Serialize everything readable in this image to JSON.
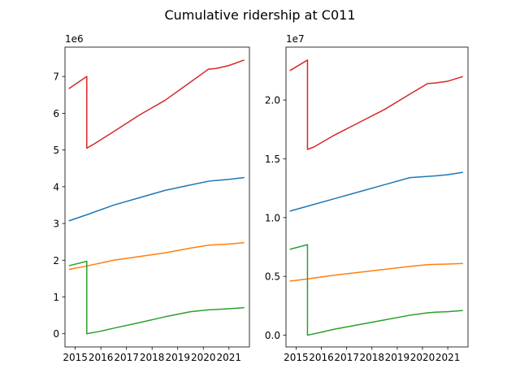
{
  "figure": {
    "title": "Cumulative ridership at C011"
  },
  "colors": {
    "blue": "#1f77b4",
    "orange": "#ff7f0e",
    "green": "#2ca02c",
    "red": "#d62728"
  },
  "chart_data": [
    {
      "type": "line",
      "title": "",
      "xlabel": "",
      "ylabel": "",
      "offset_text": "1e6",
      "xlim": [
        2014.6,
        2021.8
      ],
      "ylim": [
        -0.36,
        7.8
      ],
      "grid": false,
      "x_ticks": [
        {
          "v": 2015,
          "label": "2015"
        },
        {
          "v": 2016,
          "label": "2016"
        },
        {
          "v": 2017,
          "label": "2017"
        },
        {
          "v": 2018,
          "label": "2018"
        },
        {
          "v": 2019,
          "label": "2019"
        },
        {
          "v": 2020,
          "label": "2020"
        },
        {
          "v": 2021,
          "label": "2021"
        }
      ],
      "y_ticks": [
        {
          "v": 0,
          "label": "0"
        },
        {
          "v": 1,
          "label": "1"
        },
        {
          "v": 2,
          "label": "2"
        },
        {
          "v": 3,
          "label": "3"
        },
        {
          "v": 4,
          "label": "4"
        },
        {
          "v": 5,
          "label": "5"
        },
        {
          "v": 6,
          "label": "6"
        },
        {
          "v": 7,
          "label": "7"
        }
      ],
      "series": [
        {
          "color": "blue",
          "x": [
            2014.75,
            2015.5,
            2016.5,
            2017.5,
            2018.5,
            2019.5,
            2020.2,
            2020.5,
            2021.0,
            2021.6
          ],
          "y": [
            3.07,
            3.25,
            3.5,
            3.7,
            3.9,
            4.05,
            4.15,
            4.17,
            4.2,
            4.25
          ]
        },
        {
          "color": "orange",
          "x": [
            2014.75,
            2015.5,
            2016.5,
            2017.5,
            2018.5,
            2019.5,
            2020.2,
            2020.5,
            2021.0,
            2021.6
          ],
          "y": [
            1.75,
            1.85,
            2.0,
            2.1,
            2.2,
            2.33,
            2.41,
            2.42,
            2.44,
            2.48
          ]
        },
        {
          "color": "green",
          "x": [
            2014.75,
            2015.45,
            2015.45,
            2016.0,
            2016.5,
            2017.5,
            2018.5,
            2019.5,
            2020.2,
            2020.5,
            2021.0,
            2021.6
          ],
          "y": [
            1.85,
            1.97,
            0.0,
            0.07,
            0.15,
            0.3,
            0.46,
            0.6,
            0.65,
            0.66,
            0.68,
            0.71
          ]
        },
        {
          "color": "red",
          "x": [
            2014.75,
            2015.45,
            2015.45,
            2015.7,
            2016.5,
            2017.5,
            2018.5,
            2019.5,
            2020.2,
            2020.5,
            2021.0,
            2021.6
          ],
          "y": [
            6.67,
            7.0,
            5.05,
            5.15,
            5.5,
            5.95,
            6.35,
            6.85,
            7.2,
            7.22,
            7.3,
            7.45
          ]
        }
      ]
    },
    {
      "type": "line",
      "title": "",
      "xlabel": "",
      "ylabel": "",
      "offset_text": "1e7",
      "xlim": [
        2014.6,
        2021.8
      ],
      "ylim": [
        -0.1,
        2.45
      ],
      "grid": false,
      "x_ticks": [
        {
          "v": 2015,
          "label": "2015"
        },
        {
          "v": 2016,
          "label": "2016"
        },
        {
          "v": 2017,
          "label": "2017"
        },
        {
          "v": 2018,
          "label": "2018"
        },
        {
          "v": 2019,
          "label": "2019"
        },
        {
          "v": 2020,
          "label": "2020"
        },
        {
          "v": 2021,
          "label": "2021"
        }
      ],
      "y_ticks": [
        {
          "v": 0,
          "label": "0.0"
        },
        {
          "v": 0.5,
          "label": "0.5"
        },
        {
          "v": 1.0,
          "label": "1.0"
        },
        {
          "v": 1.5,
          "label": "1.5"
        },
        {
          "v": 2.0,
          "label": "2.0"
        }
      ],
      "series": [
        {
          "color": "blue",
          "x": [
            2014.75,
            2015.5,
            2016.5,
            2017.5,
            2018.5,
            2019.5,
            2020.2,
            2020.5,
            2021.0,
            2021.6
          ],
          "y": [
            1.055,
            1.1,
            1.16,
            1.22,
            1.28,
            1.34,
            1.35,
            1.355,
            1.365,
            1.385
          ]
        },
        {
          "color": "orange",
          "x": [
            2014.75,
            2015.5,
            2016.5,
            2017.5,
            2018.5,
            2019.5,
            2020.2,
            2020.5,
            2021.0,
            2021.6
          ],
          "y": [
            0.46,
            0.48,
            0.51,
            0.535,
            0.56,
            0.585,
            0.6,
            0.602,
            0.605,
            0.61
          ]
        },
        {
          "color": "green",
          "x": [
            2014.75,
            2015.45,
            2015.45,
            2016.0,
            2016.5,
            2017.5,
            2018.5,
            2019.5,
            2020.2,
            2020.5,
            2021.0,
            2021.6
          ],
          "y": [
            0.73,
            0.77,
            0.0,
            0.025,
            0.05,
            0.09,
            0.13,
            0.17,
            0.19,
            0.195,
            0.2,
            0.21
          ]
        },
        {
          "color": "red",
          "x": [
            2014.75,
            2015.45,
            2015.45,
            2015.7,
            2016.5,
            2017.5,
            2018.5,
            2019.5,
            2020.2,
            2020.5,
            2021.0,
            2021.6
          ],
          "y": [
            2.25,
            2.34,
            1.58,
            1.6,
            1.7,
            1.81,
            1.92,
            2.05,
            2.14,
            2.145,
            2.16,
            2.2
          ]
        }
      ]
    }
  ]
}
